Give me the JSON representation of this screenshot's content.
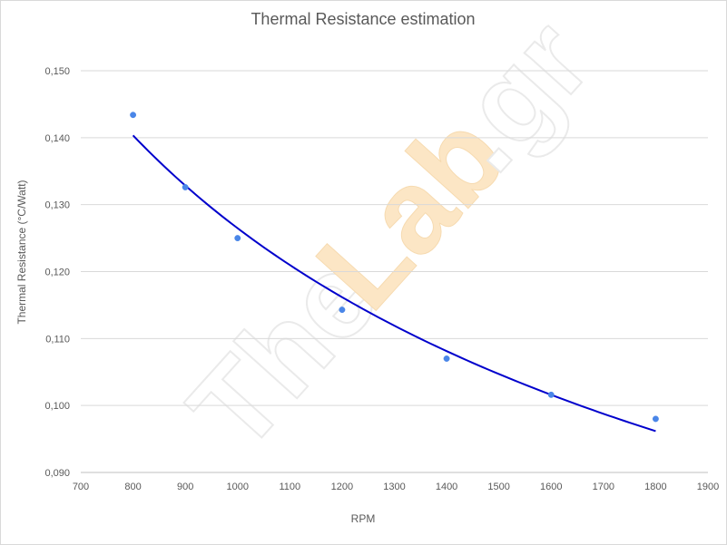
{
  "watermark": {
    "text_the": "The",
    "text_lab": "Lab",
    "text_gr": ".gr"
  },
  "chart_data": {
    "type": "scatter",
    "title": "Thermal Resistance estimation",
    "xlabel": "RPM",
    "ylabel": "Thermal Resistance (°C/Watt)",
    "xlim": [
      700,
      1900
    ],
    "ylim": [
      0.09,
      0.15
    ],
    "x_ticks": [
      700,
      800,
      900,
      1000,
      1100,
      1200,
      1300,
      1400,
      1500,
      1600,
      1700,
      1800,
      1900
    ],
    "y_ticks": [
      "0,090",
      "0,100",
      "0,110",
      "0,120",
      "0,130",
      "0,140",
      "0,150"
    ],
    "grid": "horizontal",
    "series": [
      {
        "x": [
          800,
          900,
          1000,
          1200,
          1400,
          1600,
          1800
        ],
        "y": [
          0.1434,
          0.1326,
          0.125,
          0.1143,
          0.107,
          0.1016,
          0.098
        ],
        "marker_color": "#4a86e8",
        "trendline_color": "#0000cc"
      }
    ]
  }
}
